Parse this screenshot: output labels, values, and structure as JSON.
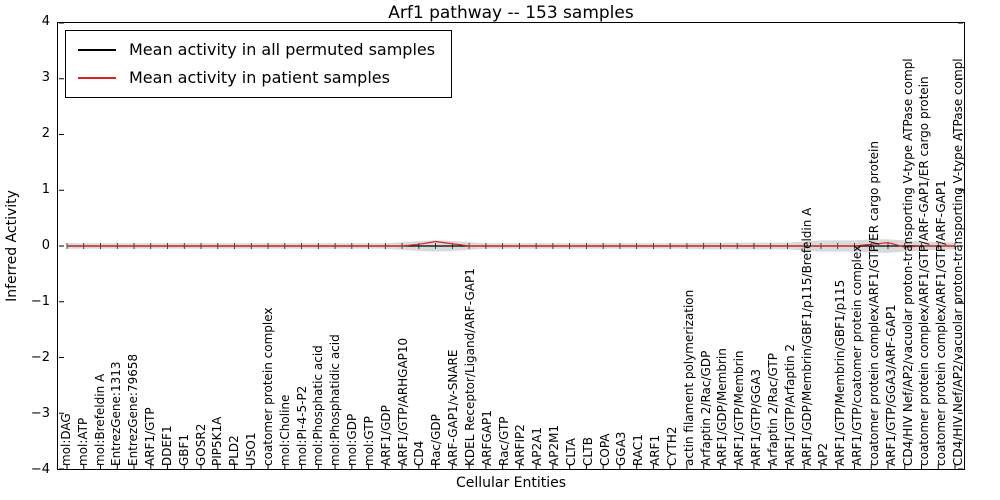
{
  "chart_data": {
    "type": "line",
    "title": "Arf1 pathway -- 153 samples",
    "xlabel": "Cellular Entities",
    "ylabel": "Inferred Activity",
    "ylim": [
      -4,
      4
    ],
    "yticks": [
      4,
      3,
      2,
      1,
      0,
      -1,
      -2,
      -3,
      -4
    ],
    "grid": false,
    "legend_position": "upper left",
    "categories": [
      "mol:DAG",
      "mol:ATP",
      "mol:Brefeldin A",
      "EntrezGene:1313",
      "EntrezGene:79658",
      "ARF1/GTP",
      "DDEF1",
      "GBF1",
      "GOSR2",
      "PIP5K1A",
      "PLD2",
      "USO1",
      "coatomer protein complex",
      "mol:Choline",
      "mol:PI-4-5-P2",
      "mol:Phosphatic acid",
      "mol:Phosphatidic acid",
      "mol:GDP",
      "mol:GTP",
      "ARF1/GDP",
      "ARF1/GTP/ARHGAP10",
      "CD4",
      "Rac/GDP",
      "ARF-GAP1/v-SNARE",
      "KDEL Receptor/Ligand/ARF-GAP1",
      "ARFGAP1",
      "Rac/GTP",
      "ARFIP2",
      "AP2A1",
      "AP2M1",
      "CLTA",
      "CLTB",
      "COPA",
      "GGA3",
      "RAC1",
      "ARF1",
      "CYTH2",
      "actin filament polymerization",
      "Arfaptin 2/Rac/GDP",
      "ARF1/GDP/Membrin",
      "ARF1/GTP/Membrin",
      "ARF1/GTP/GGA3",
      "Arfaptin 2/Rac/GTP",
      "ARF1/GTP/Arfaptin 2",
      "ARF1/GDP/Membrin/GBF1/p115/Brefeldin A",
      "AP2",
      "ARF1/GTP/Membrin/GBF1/p115",
      "ARF1/GTP/coatomer protein complex",
      "coatomer protein complex/ARF1/GTP/ER cargo protein",
      "ARF1/GTP/GGA3/ARF-GAP1",
      "CD4/HIV Nef/AP2/vacuolar proton-transporting V-type ATPase compl",
      "coatomer protein complex/ARF1/GTP/ARF-GAP1/ER cargo protein",
      "coatomer protein complex/ARF1/GTP/ARF-GAP1",
      "CD4/HIV Nef/AP2/vacuolar proton-transporting V-type ATPase compl"
    ],
    "series": [
      {
        "name": "Mean activity in all permuted samples",
        "color": "#000000",
        "values": [
          0,
          0,
          0,
          0,
          0,
          0,
          0,
          0,
          0,
          0,
          0,
          0,
          0,
          0,
          0,
          0,
          0,
          0,
          0,
          0,
          0,
          0,
          0,
          0,
          0,
          0,
          0,
          0,
          0,
          0,
          0,
          0,
          0,
          0,
          0,
          0,
          0,
          0,
          0,
          0,
          0,
          0,
          0,
          0,
          0,
          0,
          0,
          0,
          0,
          0,
          0,
          0,
          0,
          0
        ]
      },
      {
        "name": "Mean activity in patient samples",
        "color": "#dd2222",
        "values": [
          0,
          0,
          0,
          0,
          0,
          0,
          0,
          0,
          0,
          0,
          0,
          0,
          0,
          0,
          0,
          0,
          0,
          0,
          0,
          0,
          0,
          0.03,
          0.08,
          0.04,
          0,
          0,
          0,
          0,
          0,
          0,
          0,
          0,
          0,
          0,
          0,
          0,
          0,
          0,
          0,
          0,
          0,
          0,
          0,
          0,
          0,
          0,
          0,
          0,
          0.03,
          0.06,
          -0.02,
          0,
          0,
          0
        ]
      }
    ],
    "band": {
      "name": "permuted-samples-spread",
      "color": "#d9d9d9",
      "half_widths": [
        0.05,
        0.05,
        0.05,
        0.05,
        0.05,
        0.05,
        0.05,
        0.05,
        0.05,
        0.05,
        0.05,
        0.05,
        0.05,
        0.05,
        0.05,
        0.05,
        0.05,
        0.05,
        0.05,
        0.05,
        0.07,
        0.09,
        0.1,
        0.09,
        0.07,
        0.05,
        0.05,
        0.05,
        0.05,
        0.05,
        0.05,
        0.05,
        0.05,
        0.05,
        0.05,
        0.05,
        0.05,
        0.05,
        0.06,
        0.06,
        0.06,
        0.06,
        0.06,
        0.06,
        0.08,
        0.1,
        0.1,
        0.1,
        0.12,
        0.12,
        0.1,
        0.08,
        0.07,
        0.06
      ]
    }
  }
}
